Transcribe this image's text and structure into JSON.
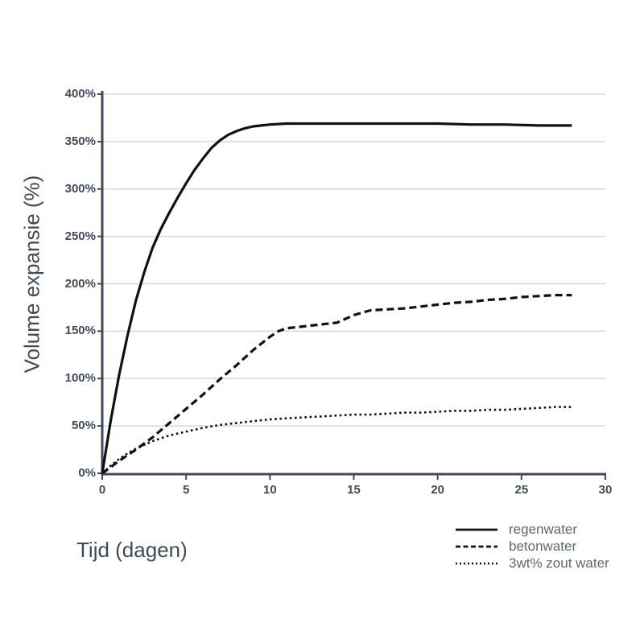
{
  "colors": {
    "background": "#ffffff",
    "axis_line": "#3e4a58",
    "axis_text": "#3e4a58",
    "gridline": "#d9d9d9",
    "legend_text": "#5d6772",
    "series_line": "#111111"
  },
  "chart_data": {
    "type": "line",
    "title": "",
    "xlabel": "Tijd (dagen)",
    "ylabel": "Volume expansie (%)",
    "xlim": [
      0,
      30
    ],
    "ylim": [
      0,
      400
    ],
    "x_ticks": [
      0,
      5,
      10,
      15,
      20,
      25,
      30
    ],
    "x_tick_labels": [
      "0",
      "5",
      "10",
      "15",
      "20",
      "25",
      "30"
    ],
    "y_ticks": [
      0,
      50,
      100,
      150,
      200,
      250,
      300,
      350,
      400
    ],
    "y_tick_labels": [
      "0%",
      "50%",
      "100%",
      "150%",
      "200%",
      "250%",
      "300%",
      "350%",
      "400%"
    ],
    "grid": "horizontal",
    "legend_position": "bottom-right",
    "series": [
      {
        "name": "regenwater",
        "line_style": "solid",
        "color": "#111111",
        "points": [
          [
            0,
            0
          ],
          [
            0.5,
            55
          ],
          [
            1,
            103
          ],
          [
            1.5,
            145
          ],
          [
            2,
            182
          ],
          [
            2.5,
            212
          ],
          [
            3,
            238
          ],
          [
            3.5,
            258
          ],
          [
            4,
            275
          ],
          [
            4.5,
            291
          ],
          [
            5,
            306
          ],
          [
            5.5,
            320
          ],
          [
            6,
            332
          ],
          [
            6.5,
            343
          ],
          [
            7,
            351
          ],
          [
            7.5,
            357
          ],
          [
            8,
            361
          ],
          [
            8.5,
            364
          ],
          [
            9,
            366
          ],
          [
            9.5,
            367
          ],
          [
            10,
            368
          ],
          [
            11,
            369
          ],
          [
            12,
            369
          ],
          [
            14,
            369
          ],
          [
            16,
            369
          ],
          [
            18,
            369
          ],
          [
            20,
            369
          ],
          [
            22,
            368
          ],
          [
            24,
            368
          ],
          [
            26,
            367
          ],
          [
            28,
            367
          ]
        ]
      },
      {
        "name": "betonwater",
        "line_style": "dashed",
        "color": "#111111",
        "points": [
          [
            0,
            0
          ],
          [
            1,
            13
          ],
          [
            2,
            25
          ],
          [
            3,
            38
          ],
          [
            4,
            53
          ],
          [
            5,
            68
          ],
          [
            6,
            83
          ],
          [
            7,
            99
          ],
          [
            8,
            114
          ],
          [
            9,
            130
          ],
          [
            10,
            144
          ],
          [
            10.5,
            150
          ],
          [
            11,
            153
          ],
          [
            12,
            155
          ],
          [
            13,
            157
          ],
          [
            14,
            159
          ],
          [
            15,
            167
          ],
          [
            16,
            172
          ],
          [
            17,
            173
          ],
          [
            18,
            174
          ],
          [
            19,
            176
          ],
          [
            20,
            178
          ],
          [
            21,
            180
          ],
          [
            22,
            181
          ],
          [
            23,
            183
          ],
          [
            24,
            184
          ],
          [
            25,
            186
          ],
          [
            26,
            187
          ],
          [
            27,
            188
          ],
          [
            28,
            188
          ]
        ]
      },
      {
        "name": "3wt% zout water",
        "line_style": "dotted",
        "color": "#111111",
        "points": [
          [
            0,
            0
          ],
          [
            0.5,
            8
          ],
          [
            1,
            15
          ],
          [
            1.5,
            21
          ],
          [
            2,
            26
          ],
          [
            2.5,
            30
          ],
          [
            3,
            34
          ],
          [
            4,
            40
          ],
          [
            5,
            44
          ],
          [
            6,
            48
          ],
          [
            7,
            51
          ],
          [
            8,
            53
          ],
          [
            9,
            55
          ],
          [
            10,
            57
          ],
          [
            11,
            58
          ],
          [
            12,
            59
          ],
          [
            13,
            60
          ],
          [
            14,
            61
          ],
          [
            15,
            62
          ],
          [
            16,
            62
          ],
          [
            17,
            63
          ],
          [
            18,
            64
          ],
          [
            19,
            64
          ],
          [
            20,
            65
          ],
          [
            21,
            66
          ],
          [
            22,
            66
          ],
          [
            23,
            67
          ],
          [
            24,
            67
          ],
          [
            25,
            68
          ],
          [
            26,
            69
          ],
          [
            27,
            70
          ],
          [
            28,
            70
          ]
        ]
      }
    ]
  }
}
